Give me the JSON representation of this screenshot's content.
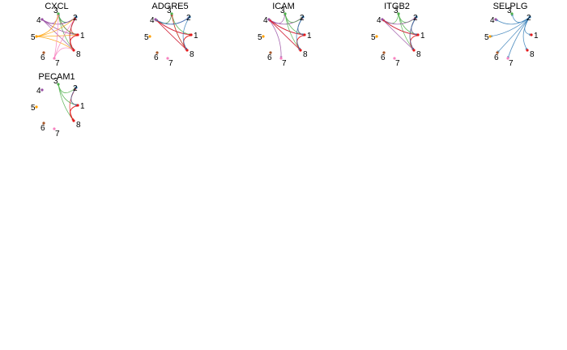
{
  "node_colors": {
    "1": "#e41a1c",
    "2": "#377eb8",
    "3": "#4daf4a",
    "4": "#984ea3",
    "5": "#ff9f00",
    "6": "#a65628",
    "7": "#f781bf",
    "8": "#e41a1c"
  },
  "panels": [
    {
      "title": "CXCL",
      "nodes": [
        "1",
        "2",
        "3",
        "4",
        "5",
        "6",
        "7",
        "8"
      ],
      "edges": [
        {
          "s": "1",
          "t": "2"
        },
        {
          "s": "1",
          "t": "3"
        },
        {
          "s": "1",
          "t": "8"
        },
        {
          "s": "2",
          "t": "3"
        },
        {
          "s": "2",
          "t": "8"
        },
        {
          "s": "3",
          "t": "2"
        },
        {
          "s": "3",
          "t": "1"
        },
        {
          "s": "3",
          "t": "8"
        },
        {
          "s": "4",
          "t": "2"
        },
        {
          "s": "4",
          "t": "3"
        },
        {
          "s": "4",
          "t": "1"
        },
        {
          "s": "4",
          "t": "8"
        },
        {
          "s": "5",
          "t": "2"
        },
        {
          "s": "5",
          "t": "3"
        },
        {
          "s": "5",
          "t": "1"
        },
        {
          "s": "5",
          "t": "8"
        },
        {
          "s": "7",
          "t": "2"
        },
        {
          "s": "7",
          "t": "3"
        },
        {
          "s": "7",
          "t": "8"
        },
        {
          "s": "8",
          "t": "2"
        },
        {
          "s": "8",
          "t": "1"
        }
      ]
    },
    {
      "title": "ADGRE5",
      "nodes": [
        "1",
        "2",
        "3",
        "4",
        "5",
        "6",
        "7",
        "8"
      ],
      "edges": [
        {
          "s": "4",
          "t": "3"
        },
        {
          "s": "4",
          "t": "2"
        },
        {
          "s": "4",
          "t": "1"
        },
        {
          "s": "4",
          "t": "8"
        },
        {
          "s": "3",
          "t": "4"
        },
        {
          "s": "3",
          "t": "1"
        },
        {
          "s": "3",
          "t": "8"
        },
        {
          "s": "1",
          "t": "4"
        },
        {
          "s": "1",
          "t": "8"
        },
        {
          "s": "8",
          "t": "4"
        },
        {
          "s": "8",
          "t": "3"
        },
        {
          "s": "8",
          "t": "1"
        },
        {
          "s": "2",
          "t": "4"
        },
        {
          "s": "2",
          "t": "8"
        }
      ]
    },
    {
      "title": "ICAM",
      "nodes": [
        "1",
        "2",
        "3",
        "4",
        "5",
        "6",
        "7",
        "8"
      ],
      "edges": [
        {
          "s": "4",
          "t": "2"
        },
        {
          "s": "4",
          "t": "3"
        },
        {
          "s": "4",
          "t": "1"
        },
        {
          "s": "4",
          "t": "8"
        },
        {
          "s": "4",
          "t": "7"
        },
        {
          "s": "3",
          "t": "2"
        },
        {
          "s": "3",
          "t": "1"
        },
        {
          "s": "3",
          "t": "8"
        },
        {
          "s": "1",
          "t": "2"
        },
        {
          "s": "1",
          "t": "8"
        },
        {
          "s": "1",
          "t": "4"
        },
        {
          "s": "8",
          "t": "1"
        },
        {
          "s": "8",
          "t": "4"
        },
        {
          "s": "2",
          "t": "8"
        },
        {
          "s": "2",
          "t": "1"
        }
      ]
    },
    {
      "title": "ITGB2",
      "nodes": [
        "1",
        "2",
        "3",
        "4",
        "5",
        "6",
        "7",
        "8"
      ],
      "edges": [
        {
          "s": "3",
          "t": "2"
        },
        {
          "s": "3",
          "t": "1"
        },
        {
          "s": "3",
          "t": "8"
        },
        {
          "s": "3",
          "t": "4"
        },
        {
          "s": "4",
          "t": "2"
        },
        {
          "s": "4",
          "t": "1"
        },
        {
          "s": "4",
          "t": "8"
        },
        {
          "s": "1",
          "t": "2"
        },
        {
          "s": "1",
          "t": "8"
        },
        {
          "s": "1",
          "t": "4"
        },
        {
          "s": "8",
          "t": "1"
        },
        {
          "s": "8",
          "t": "2"
        },
        {
          "s": "2",
          "t": "1"
        },
        {
          "s": "2",
          "t": "8"
        }
      ]
    },
    {
      "title": "SELPLG",
      "nodes": [
        "1",
        "2",
        "3",
        "4",
        "5",
        "6",
        "7",
        "8"
      ],
      "edges": [
        {
          "s": "2",
          "t": "3"
        },
        {
          "s": "2",
          "t": "4"
        },
        {
          "s": "2",
          "t": "5"
        },
        {
          "s": "2",
          "t": "6"
        },
        {
          "s": "2",
          "t": "7"
        },
        {
          "s": "2",
          "t": "8"
        },
        {
          "s": "2",
          "t": "1"
        }
      ]
    },
    {
      "title": "PECAM1",
      "nodes": [
        "1",
        "2",
        "3",
        "4",
        "5",
        "6",
        "7",
        "8"
      ],
      "edges": [
        {
          "s": "3",
          "t": "2"
        },
        {
          "s": "3",
          "t": "1"
        },
        {
          "s": "3",
          "t": "8"
        },
        {
          "s": "1",
          "t": "2"
        },
        {
          "s": "1",
          "t": "8"
        },
        {
          "s": "8",
          "t": "1"
        },
        {
          "s": "8",
          "t": "2"
        },
        {
          "s": "2",
          "t": "1"
        }
      ]
    }
  ]
}
